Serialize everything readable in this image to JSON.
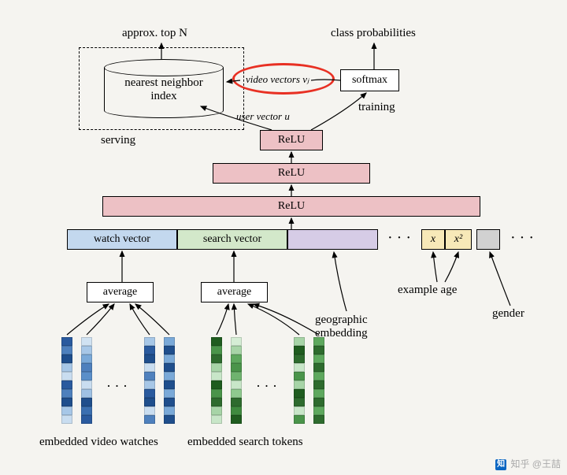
{
  "top": {
    "approx_top_n": "approx. top N",
    "class_prob": "class probabilities",
    "nn_index": "nearest neighbor\nindex",
    "video_vectors": "video vectors vⱼ",
    "softmax": "softmax",
    "user_vector": "user vector u",
    "training": "training",
    "serving": "serving"
  },
  "relu": {
    "r1": "ReLU",
    "r2": "ReLU",
    "r3": "ReLU"
  },
  "concat": {
    "watch": "watch vector",
    "search": "search vector",
    "x": "x",
    "x2": "x²"
  },
  "avg": {
    "a1": "average",
    "a2": "average"
  },
  "feats": {
    "example_age": "example age",
    "gender": "gender",
    "geo": "geographic\nembedding"
  },
  "bottom": {
    "emb_video": "embedded video watches",
    "emb_search": "embedded search tokens"
  },
  "colors": {
    "relu": "#edc1c5",
    "watch": "#c3d8ee",
    "search": "#d3e8ca",
    "geo": "#d6cce6",
    "age": "#f7e9b8",
    "gender": "#d1d1d1",
    "white": "#ffffff"
  },
  "blues": [
    "#1f4e8c",
    "#5a8fc9",
    "#a7c7e7",
    "#3b6fb0",
    "#c9ddf0",
    "#7aa9d8",
    "#2a5a9e",
    "#9fc1e4",
    "#4e80bd",
    "#d0e2f2"
  ],
  "greens": [
    "#2e6b2e",
    "#6fb36f",
    "#a7d4a7",
    "#3f8a3f",
    "#c8e6c8",
    "#5ea85e",
    "#1f5c1f",
    "#8fc98f",
    "#4a944a",
    "#d5edd5"
  ],
  "watermark": "知乎 @王喆"
}
